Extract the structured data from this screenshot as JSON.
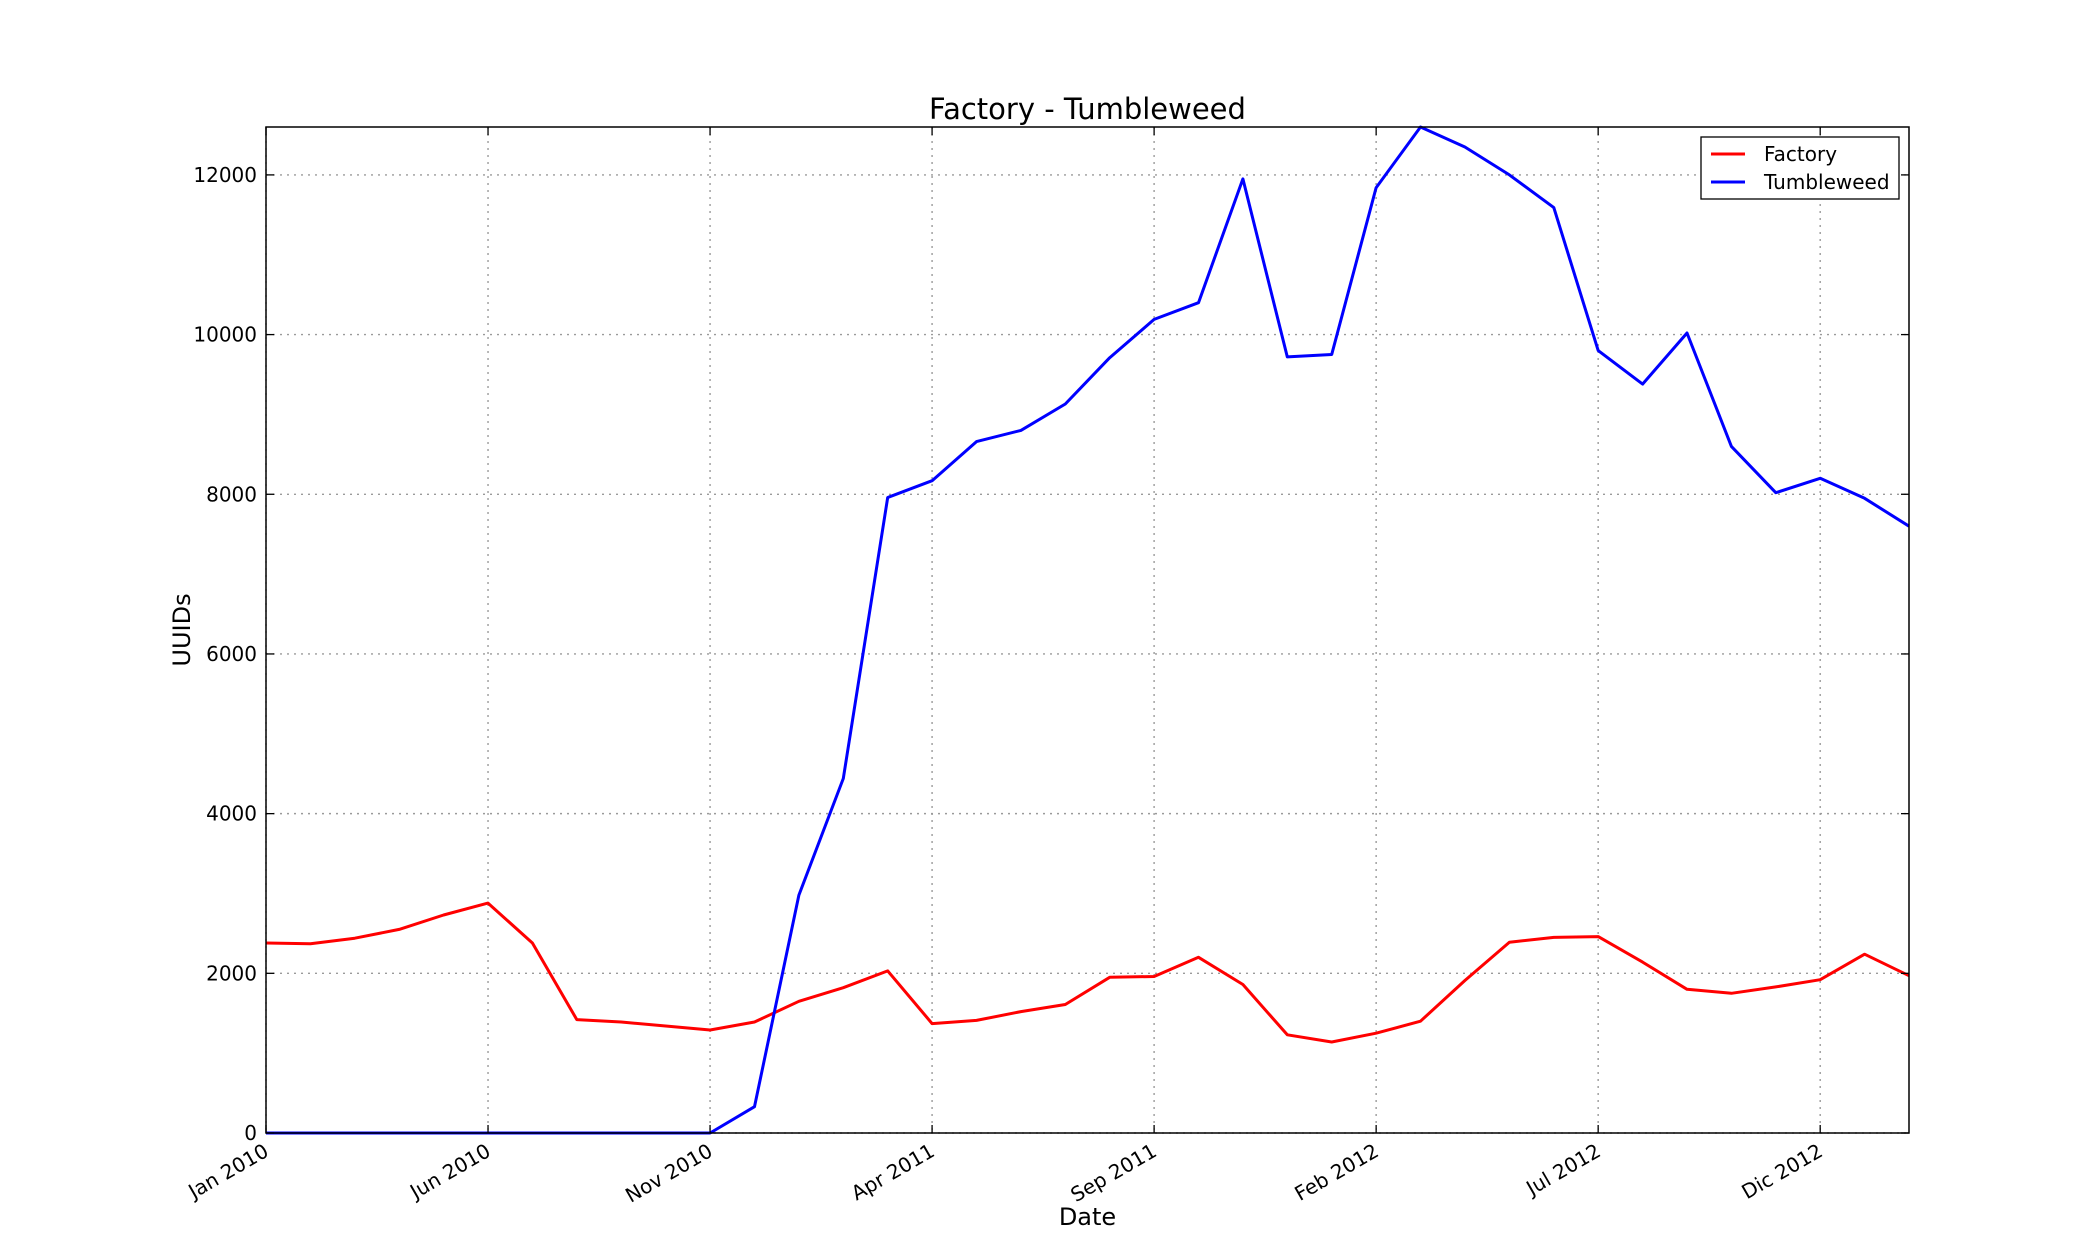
{
  "chart_data": {
    "type": "line",
    "title": "Factory - Tumbleweed",
    "xlabel": "Date",
    "ylabel": "UUIDs",
    "ylim": [
      0,
      12600
    ],
    "xlim": [
      "2010-01",
      "2013-02"
    ],
    "yticks": [
      0,
      2000,
      4000,
      6000,
      8000,
      10000,
      12000
    ],
    "xticks": [
      {
        "date": "2010-01",
        "label": "Jan 2010"
      },
      {
        "date": "2010-06",
        "label": "Jun 2010"
      },
      {
        "date": "2010-11",
        "label": "Nov 2010"
      },
      {
        "date": "2011-04",
        "label": "Apr 2011"
      },
      {
        "date": "2011-09",
        "label": "Sep 2011"
      },
      {
        "date": "2012-02",
        "label": "Feb 2012"
      },
      {
        "date": "2012-07",
        "label": "Jul 2012"
      },
      {
        "date": "2012-12",
        "label": "Dic 2012"
      }
    ],
    "grid": true,
    "legend_position": "top-right",
    "x": [
      "2010-01",
      "2010-02",
      "2010-03",
      "2010-04",
      "2010-05",
      "2010-06",
      "2010-07",
      "2010-08",
      "2010-09",
      "2010-10",
      "2010-11",
      "2010-12",
      "2011-01",
      "2011-02",
      "2011-03",
      "2011-04",
      "2011-05",
      "2011-06",
      "2011-07",
      "2011-08",
      "2011-09",
      "2011-10",
      "2011-11",
      "2011-12",
      "2012-01",
      "2012-02",
      "2012-03",
      "2012-04",
      "2012-05",
      "2012-06",
      "2012-07",
      "2012-08",
      "2012-09",
      "2012-10",
      "2012-11",
      "2012-12",
      "2013-01",
      "2013-02"
    ],
    "series": [
      {
        "name": "Factory",
        "color": "#ff0000",
        "values": [
          2380,
          2370,
          2440,
          2550,
          2730,
          2880,
          2380,
          1420,
          1390,
          1340,
          1290,
          1390,
          1650,
          1820,
          2030,
          1370,
          1410,
          1520,
          1610,
          1950,
          1960,
          2200,
          1860,
          1230,
          1140,
          1250,
          1400,
          1910,
          2390,
          2450,
          2460,
          2140,
          1800,
          1750,
          1830,
          1920,
          2240,
          1970
        ]
      },
      {
        "name": "Tumbleweed",
        "color": "#0000ff",
        "values": [
          0,
          0,
          0,
          0,
          0,
          0,
          0,
          0,
          0,
          0,
          0,
          330,
          2980,
          4440,
          7960,
          8170,
          8660,
          8800,
          9130,
          9710,
          10190,
          10400,
          11950,
          9720,
          9750,
          11840,
          12600,
          12350,
          12000,
          11590,
          9800,
          9380,
          10020,
          8600,
          8020,
          8200,
          7950,
          7600
        ]
      }
    ]
  }
}
